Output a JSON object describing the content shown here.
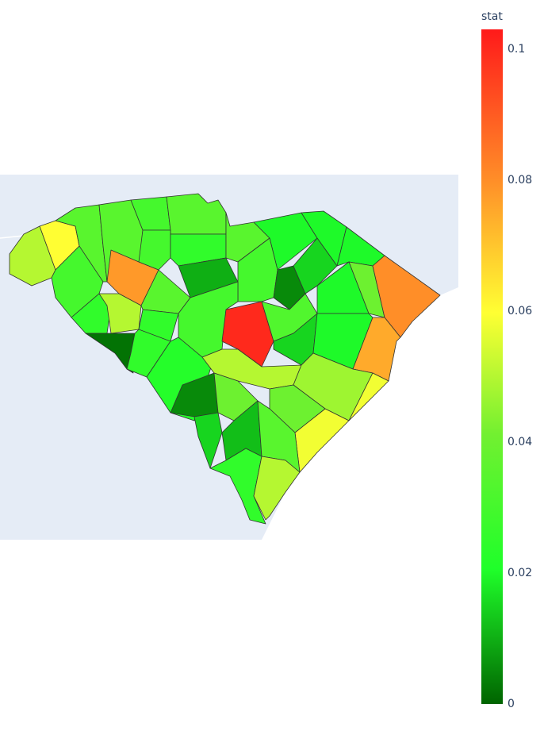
{
  "chart_data": {
    "type": "choropleth",
    "colorbar_title": "stat",
    "zlim": [
      0,
      0.103
    ],
    "zticks": [
      0,
      0.02,
      0.04,
      0.06,
      0.08,
      0.1
    ],
    "colorscale": [
      [
        0,
        "#006400"
      ],
      [
        0.2,
        "#1fff2a"
      ],
      [
        0.4,
        "#72f030"
      ],
      [
        0.58,
        "#ffff33"
      ],
      [
        0.78,
        "#ff8c28"
      ],
      [
        1,
        "#ff1a1a"
      ]
    ],
    "values": [
      0.05,
      0.06,
      0.035,
      0.03,
      0.035,
      0.03,
      0.035,
      0.078,
      0.03,
      0.025,
      0.025,
      0.05,
      0.035,
      0.002,
      0.025,
      0.025,
      0.01,
      0.035,
      0.02,
      0.02,
      0.03,
      0.03,
      0.1,
      0.022,
      0.005,
      0.015,
      0.02,
      0.04,
      0.08,
      0.02,
      0.033,
      0.015,
      0.02,
      0.075,
      0.05,
      0.047,
      0.058,
      0.04,
      0.005,
      0.04,
      0.015,
      0.012,
      0.035,
      0.025,
      0.05
    ]
  }
}
